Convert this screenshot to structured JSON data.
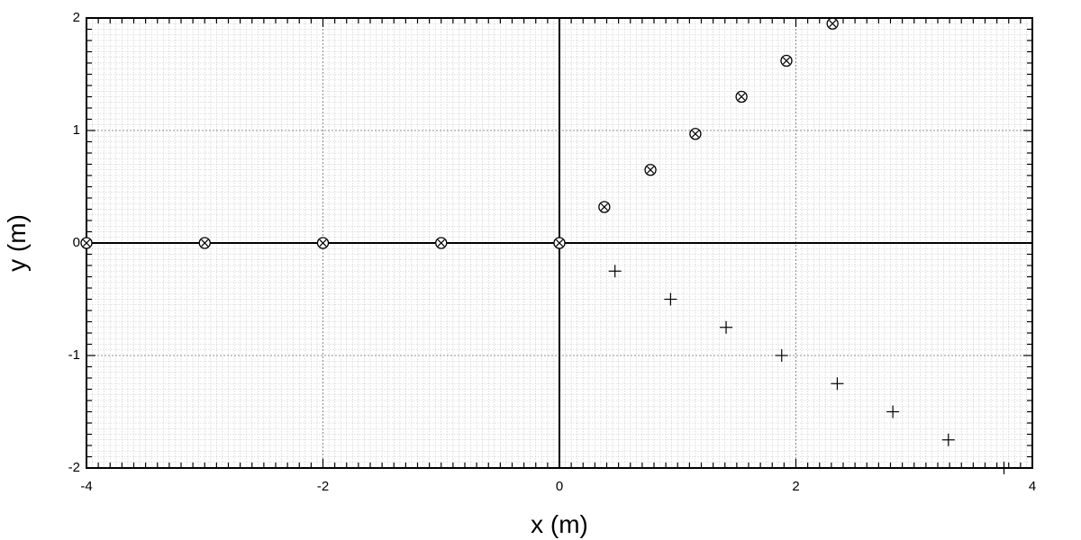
{
  "chart_data": {
    "type": "scatter",
    "xlabel": "x (m)",
    "ylabel": "y (m)",
    "xlim": [
      -4,
      4
    ],
    "ylim": [
      -2,
      2
    ],
    "x_major_ticks": [
      -4,
      -2,
      0,
      2,
      4
    ],
    "y_major_ticks": [
      -2,
      -1,
      0,
      1,
      2
    ],
    "x_tick_labels": [
      "-4",
      "-2",
      "0",
      "2",
      "4"
    ],
    "y_tick_labels": [
      "-2",
      "-1",
      "0",
      "1",
      "2"
    ],
    "grid": true,
    "zero_lines": true,
    "series": [
      {
        "marker": "circle-x",
        "x": [
          -4,
          -3,
          -2,
          -1,
          0,
          0.38,
          0.77,
          1.15,
          1.54,
          1.92,
          2.31
        ],
        "y": [
          0,
          0,
          0,
          0,
          0,
          0.32,
          0.65,
          0.97,
          1.3,
          1.62,
          1.95
        ]
      },
      {
        "marker": "plus",
        "x": [
          0.47,
          0.94,
          1.41,
          1.88,
          2.35,
          2.82,
          3.29,
          3.76
        ],
        "y": [
          -0.25,
          -0.5,
          -0.75,
          -1.0,
          -1.25,
          -1.5,
          -1.75,
          -2.0
        ]
      }
    ]
  }
}
